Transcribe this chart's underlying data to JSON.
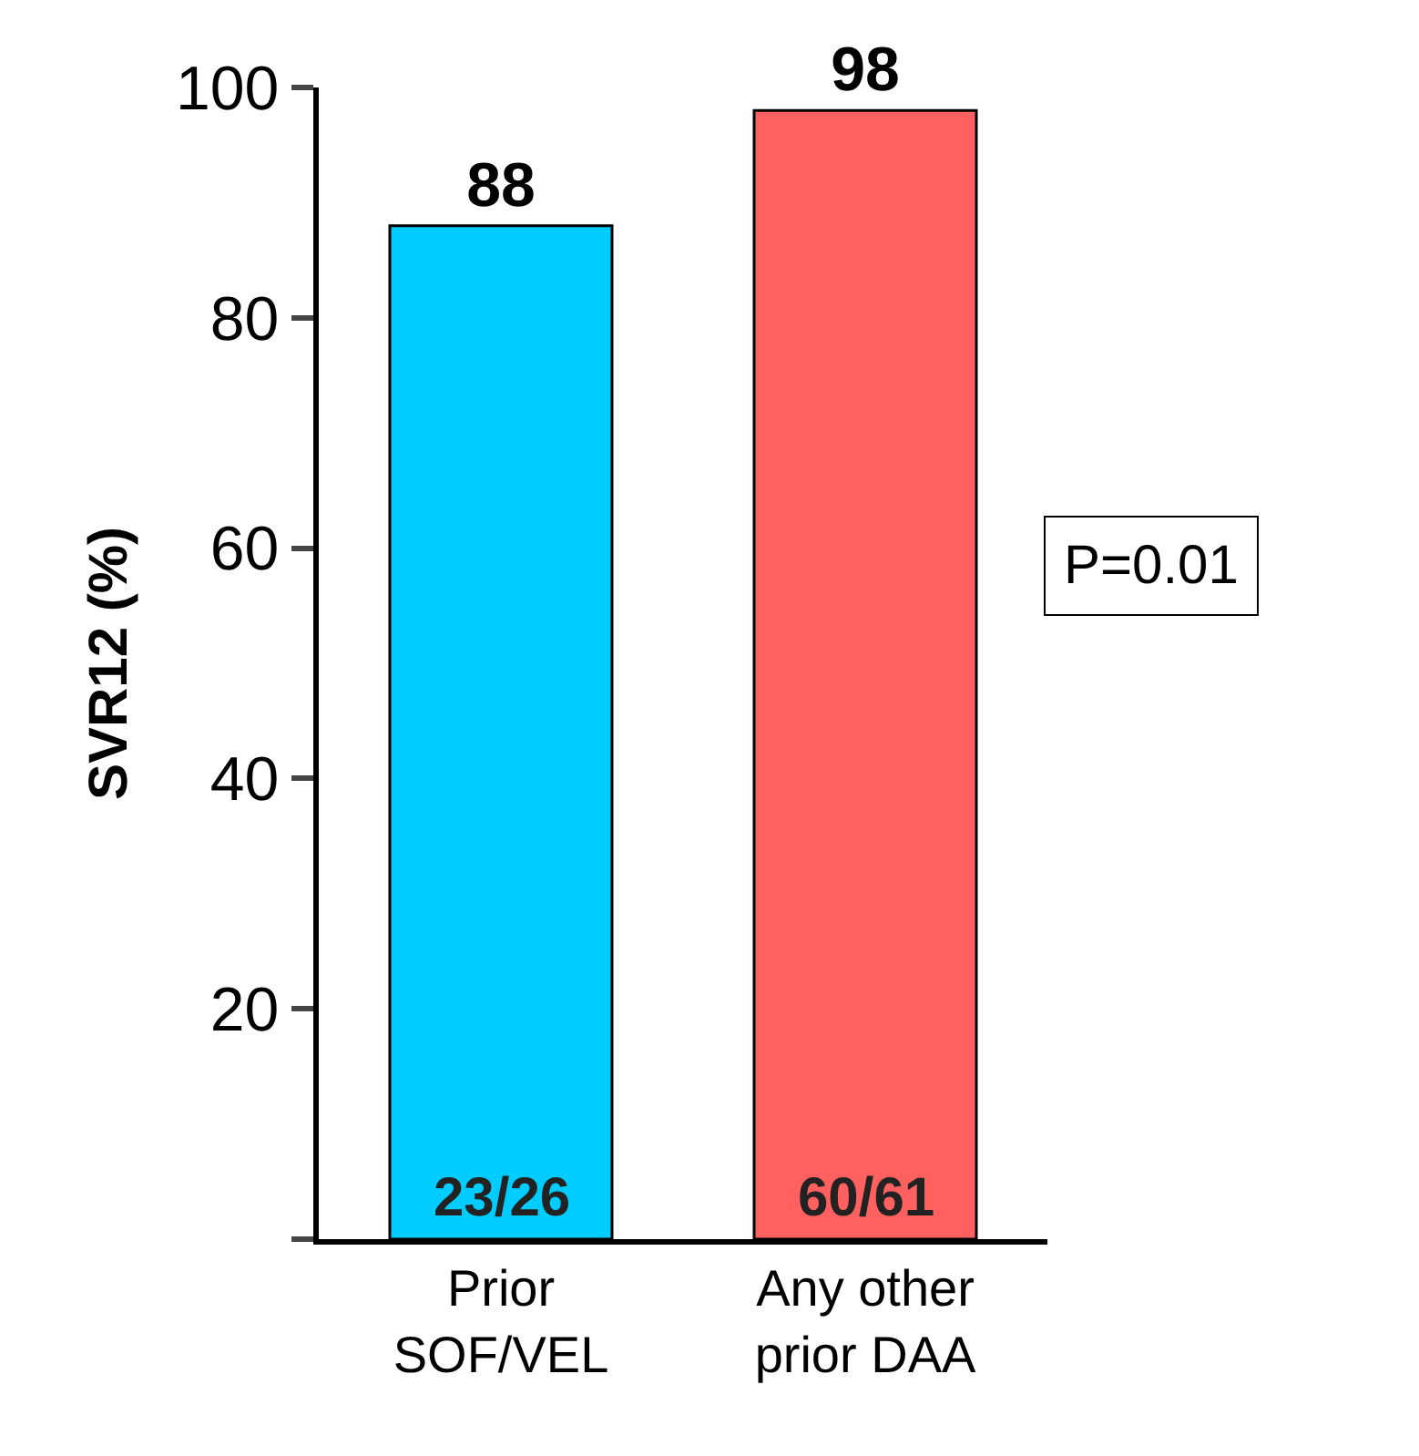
{
  "chart_data": {
    "type": "bar",
    "ylabel": "SVR12 (%)",
    "categories": [
      "Prior SOF/VEL",
      "Any other prior DAA"
    ],
    "values": [
      88,
      98
    ],
    "colors": [
      "#00ccff",
      "#ff6161"
    ],
    "ylim": [
      0,
      100
    ],
    "yticks": [
      {
        "value": 0,
        "label": null
      },
      20,
      40,
      60,
      80,
      100
    ],
    "data_labels": true,
    "grid": false,
    "annotations": [
      "23/26",
      "60/61",
      "P=0.01"
    ]
  }
}
